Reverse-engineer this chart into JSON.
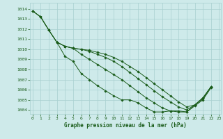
{
  "title": "Graphe pression niveau de la mer (hPa)",
  "background_color": "#ceeaea",
  "grid_color": "#a8d0d0",
  "line_color": "#1a5c1a",
  "marker": "D",
  "marker_size": 1.8,
  "linewidth": 0.7,
  "xlim": [
    -0.3,
    23.2
  ],
  "ylim": [
    1003.6,
    1014.6
  ],
  "yticks": [
    1004,
    1005,
    1006,
    1007,
    1008,
    1009,
    1010,
    1011,
    1012,
    1013,
    1014
  ],
  "xticks": [
    0,
    1,
    2,
    3,
    4,
    5,
    6,
    7,
    8,
    9,
    10,
    11,
    12,
    13,
    14,
    15,
    16,
    17,
    18,
    19,
    20,
    21,
    22,
    23
  ],
  "xlabel_fontsize": 5.5,
  "tick_fontsize": 4.5,
  "series": [
    [
      1013.8,
      1013.2,
      1011.9,
      1010.7,
      1009.3,
      1008.8,
      1007.6,
      1007.0,
      1006.4,
      1005.9,
      1005.4,
      1005.0,
      1005.0,
      1004.7,
      1004.2,
      1003.8,
      1003.8,
      1003.9,
      1003.9,
      1003.8,
      1004.4,
      1005.0,
      1006.2,
      null
    ],
    [
      1013.8,
      1013.2,
      1011.9,
      1010.7,
      1010.3,
      1010.1,
      1009.5,
      1009.0,
      1008.5,
      1008.0,
      1007.5,
      1007.0,
      1006.4,
      1005.8,
      1005.2,
      1004.7,
      1004.2,
      1003.9,
      1003.8,
      1003.8,
      1004.5,
      1005.1,
      1006.3,
      null
    ],
    [
      1013.8,
      1013.2,
      1011.9,
      1010.7,
      1010.3,
      1010.1,
      1010.0,
      1009.8,
      1009.5,
      1009.2,
      1008.8,
      1008.3,
      1007.7,
      1007.1,
      1006.5,
      1005.9,
      1005.3,
      1004.8,
      1004.3,
      1004.0,
      1004.5,
      1005.2,
      1006.3,
      null
    ],
    [
      null,
      null,
      null,
      1010.7,
      1010.3,
      1010.1,
      1010.0,
      1009.9,
      1009.7,
      1009.5,
      1009.2,
      1008.8,
      1008.3,
      1007.8,
      1007.2,
      1006.6,
      1006.0,
      1005.4,
      1004.8,
      1004.3,
      1004.5,
      1005.2,
      1006.3,
      null
    ]
  ]
}
